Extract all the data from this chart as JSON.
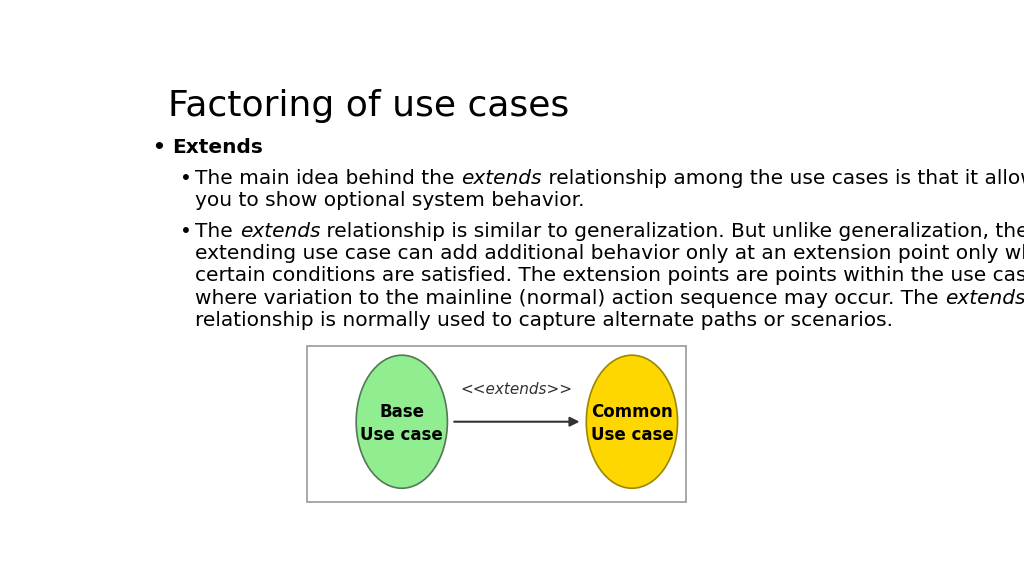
{
  "title": "Factoring of use cases",
  "title_fontsize": 26,
  "bg_color": "#ffffff",
  "text_fontsize": 14.5,
  "sub_fontsize": 14.5,
  "ellipse_label_fontsize": 12,
  "arrow_fontsize": 11,
  "ellipse1_color": "#90EE90",
  "ellipse1_edge": "#557755",
  "ellipse1_label1": "Base",
  "ellipse1_label2": "Use case",
  "ellipse2_color": "#FFD700",
  "ellipse2_edge": "#998800",
  "ellipse2_label1": "Common",
  "ellipse2_label2": "Use case",
  "arrow_label": "<<extends>>"
}
